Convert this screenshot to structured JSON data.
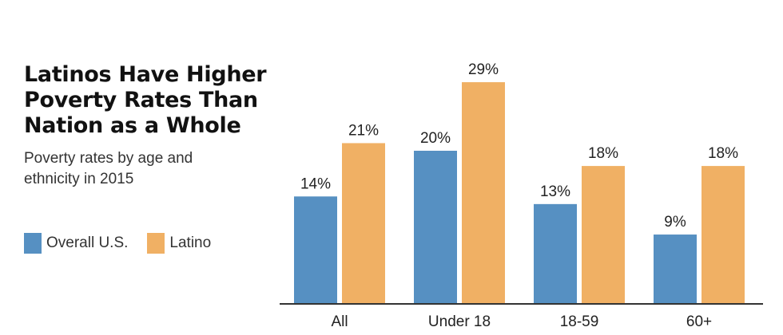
{
  "colors": {
    "overall": "#5690c2",
    "latino": "#f0b064",
    "axis": "#333333"
  },
  "chart_data": {
    "type": "bar",
    "title": "Latinos Have Higher Poverty Rates Than Nation as a Whole",
    "subtitle": "Poverty rates by age and ethnicity in 2015",
    "categories": [
      "All",
      "Under 18",
      "18-59",
      "60+"
    ],
    "series": [
      {
        "name": "Overall U.S.",
        "values": [
          14,
          20,
          13,
          9
        ],
        "labels": [
          "14%",
          "20%",
          "13%",
          "9%"
        ]
      },
      {
        "name": "Latino",
        "values": [
          21,
          29,
          18,
          18
        ],
        "labels": [
          "21%",
          "29%",
          "18%",
          "18%"
        ]
      }
    ],
    "ylim": [
      0,
      30
    ],
    "grid": false,
    "legend_position": "left"
  }
}
